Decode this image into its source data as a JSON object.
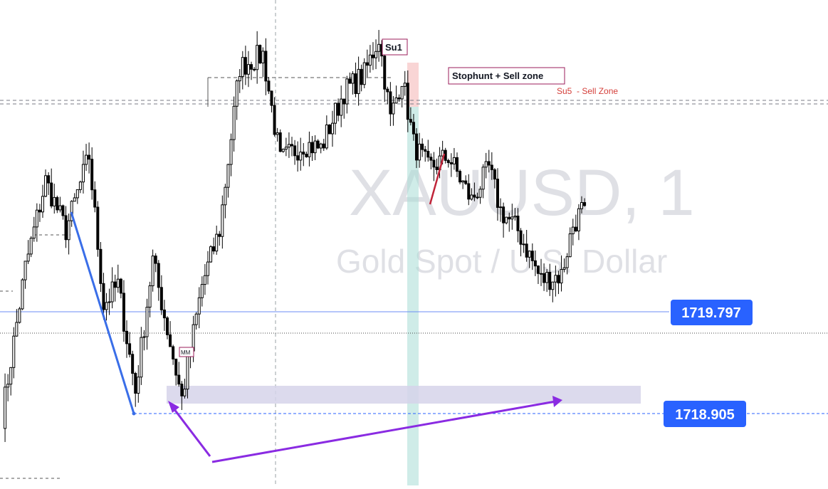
{
  "symbol": {
    "ticker": "XAUUSD, 1",
    "name": "Gold Spot / U.S. Dollar"
  },
  "chart_data": {
    "type": "candlestick",
    "ylim": [
      1718.67,
      1720.63
    ],
    "price_labels": [
      {
        "text": "1719.797",
        "price": 1719.797,
        "color": "#2962ff"
      },
      {
        "text": "1718.905",
        "price": 1718.905,
        "color": "#2962ff"
      }
    ],
    "annotations": {
      "su1": "Su1",
      "stophunt": "Stophunt + Sell zone",
      "su5": "Su5  - Sell Zone",
      "mm": "MM"
    },
    "reference_levels": {
      "sell_zone_high": 1720.41,
      "sell_zone_low": 1720.4,
      "mid_dotted": 1719.7,
      "left_short_a": 1719.87,
      "left_short_b": 1718.8
    },
    "demand_zone": {
      "price_high": 1719.03,
      "price_low": 1718.95
    },
    "swings": [
      {
        "i": 0,
        "price": 1718.95
      },
      {
        "i": 8,
        "price": 1719.55
      },
      {
        "i": 15,
        "price": 1719.9
      },
      {
        "i": 22,
        "price": 1719.7
      },
      {
        "i": 30,
        "price": 1720.0
      },
      {
        "i": 35,
        "price": 1719.4
      },
      {
        "i": 40,
        "price": 1719.48
      },
      {
        "i": 46,
        "price": 1719.05
      },
      {
        "i": 52,
        "price": 1719.58
      },
      {
        "i": 62,
        "price": 1719.02
      },
      {
        "i": 69,
        "price": 1719.48
      },
      {
        "i": 75,
        "price": 1719.7
      },
      {
        "i": 82,
        "price": 1720.36
      },
      {
        "i": 90,
        "price": 1720.41
      },
      {
        "i": 96,
        "price": 1719.98
      },
      {
        "i": 104,
        "price": 1720.05
      },
      {
        "i": 110,
        "price": 1720.03
      },
      {
        "i": 118,
        "price": 1720.26
      },
      {
        "i": 125,
        "price": 1720.33
      },
      {
        "i": 130,
        "price": 1720.48
      },
      {
        "i": 134,
        "price": 1720.15
      },
      {
        "i": 138,
        "price": 1720.32
      },
      {
        "i": 142,
        "price": 1720.05
      },
      {
        "i": 147,
        "price": 1719.95
      },
      {
        "i": 150,
        "price": 1719.97
      },
      {
        "i": 154,
        "price": 1720.0
      },
      {
        "i": 162,
        "price": 1719.82
      },
      {
        "i": 168,
        "price": 1719.95
      },
      {
        "i": 172,
        "price": 1719.78
      },
      {
        "i": 178,
        "price": 1719.7
      },
      {
        "i": 186,
        "price": 1719.5
      },
      {
        "i": 193,
        "price": 1719.52
      },
      {
        "i": 197,
        "price": 1719.72
      },
      {
        "i": 201,
        "price": 1719.8
      }
    ],
    "drawings": {
      "blue_trend": [
        [
          0,
          1719.95
        ],
        [
          3,
          1718.95
        ]
      ],
      "red_trend": [
        [
          0,
          1719.95
        ],
        [
          1,
          1720.05
        ]
      ]
    }
  }
}
